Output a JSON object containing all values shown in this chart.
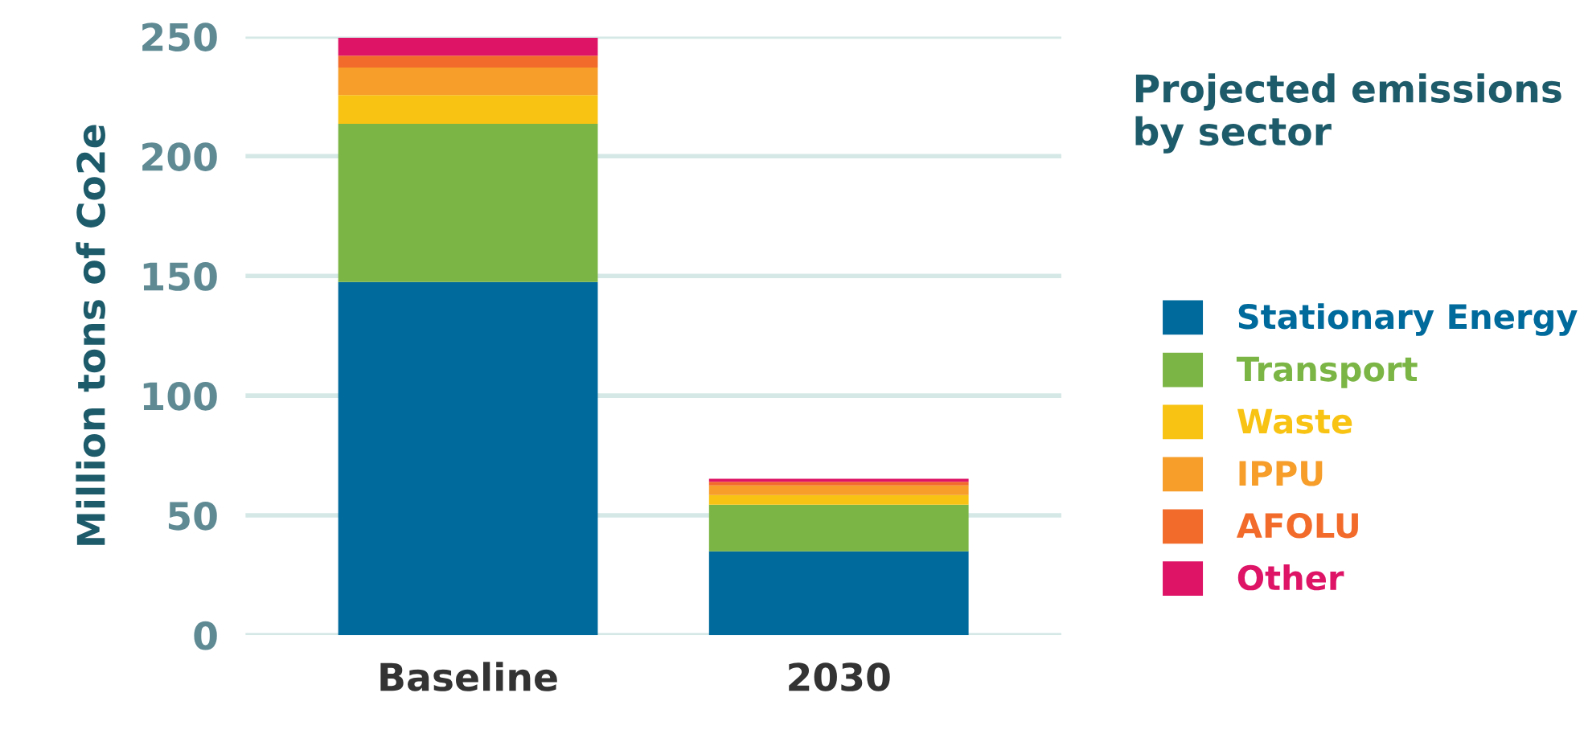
{
  "chart_data": {
    "type": "bar",
    "stacked": true,
    "categories": [
      "Baseline",
      "2030"
    ],
    "ylabel": "Million tons of Co2e",
    "legend_title": "Projected emissions\nby sector",
    "legend": "right",
    "grid": "y",
    "ylim": [
      0,
      250
    ],
    "yticks": [
      0,
      50,
      100,
      150,
      200,
      250
    ],
    "series": [
      {
        "name": "Stationary Energy",
        "color": "#006a9c",
        "values": [
          147.5,
          35
        ]
      },
      {
        "name": "Transport",
        "color": "#7bb545",
        "values": [
          66,
          19.5
        ]
      },
      {
        "name": "Waste",
        "color": "#f8c312",
        "values": [
          12,
          4
        ]
      },
      {
        "name": "IPPU",
        "color": "#f69d2a",
        "values": [
          11.5,
          4
        ]
      },
      {
        "name": "AFOLU",
        "color": "#f26b2a",
        "values": [
          5,
          1.5
        ]
      },
      {
        "name": "Other",
        "color": "#de1467",
        "values": [
          7.5,
          1.3
        ]
      }
    ]
  }
}
